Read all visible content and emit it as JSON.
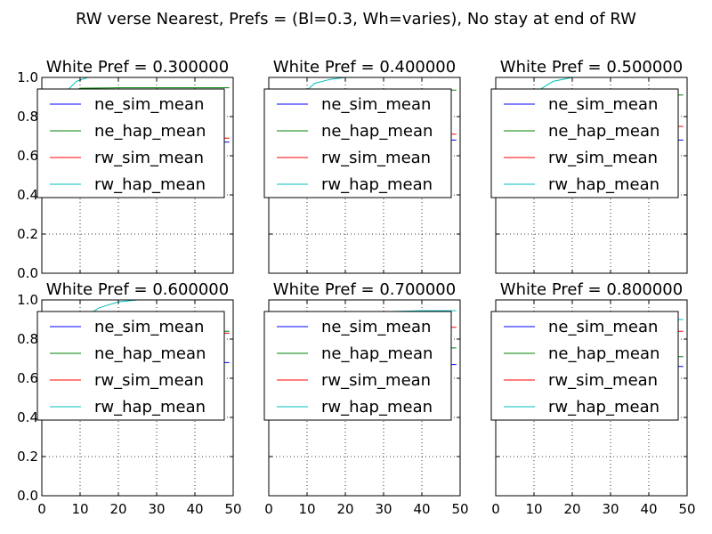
{
  "suptitle": "RW verse Nearest, Prefs = (Bl=0.3, Wh=varies), No stay at end of RW",
  "colors": {
    "ne_sim_mean": "#0000ff",
    "ne_hap_mean": "#008000",
    "rw_sim_mean": "#ff0000",
    "rw_hap_mean": "#00bfbf"
  },
  "chart_data": [
    {
      "type": "line",
      "title": "White Pref = 0.300000",
      "xlim": [
        0,
        50
      ],
      "ylim": [
        0,
        1.0
      ],
      "xticks": [
        "0",
        "10",
        "20",
        "30",
        "40",
        "50"
      ],
      "yticks": [
        "0.0",
        "0.2",
        "0.4",
        "0.6",
        "0.8",
        "1.0"
      ],
      "grid": true,
      "legend_position": "top-left",
      "legend": [
        "ne_sim_mean",
        "ne_hap_mean",
        "rw_sim_mean",
        "rw_hap_mean"
      ],
      "series": [
        {
          "name": "ne_sim_mean",
          "x": [
            0,
            49
          ],
          "y": [
            0.67,
            0.67
          ]
        },
        {
          "name": "ne_hap_mean",
          "x": [
            0,
            5,
            10,
            20,
            30,
            40,
            49
          ],
          "y": [
            0.5,
            0.9,
            0.945,
            0.947,
            0.947,
            0.947,
            0.947
          ]
        },
        {
          "name": "rw_sim_mean",
          "x": [
            0,
            49
          ],
          "y": [
            0.69,
            0.69
          ]
        },
        {
          "name": "rw_hap_mean",
          "x": [
            0,
            3,
            6,
            9,
            12,
            20,
            30,
            49
          ],
          "y": [
            0.5,
            0.8,
            0.92,
            0.98,
            1.0,
            1.0,
            1.0,
            1.0
          ]
        }
      ]
    },
    {
      "type": "line",
      "title": "White Pref = 0.400000",
      "xlim": [
        0,
        50
      ],
      "ylim": [
        0,
        1.0
      ],
      "xticks": [
        "0",
        "10",
        "20",
        "30",
        "40",
        "50"
      ],
      "yticks": [
        "0.0",
        "0.2",
        "0.4",
        "0.6",
        "0.8",
        "1.0"
      ],
      "grid": true,
      "legend_position": "top-left",
      "legend": [
        "ne_sim_mean",
        "ne_hap_mean",
        "rw_sim_mean",
        "rw_hap_mean"
      ],
      "series": [
        {
          "name": "ne_sim_mean",
          "x": [
            0,
            49
          ],
          "y": [
            0.68,
            0.68
          ]
        },
        {
          "name": "ne_hap_mean",
          "x": [
            0,
            5,
            10,
            20,
            30,
            40,
            49
          ],
          "y": [
            0.5,
            0.85,
            0.92,
            0.93,
            0.935,
            0.935,
            0.935
          ]
        },
        {
          "name": "rw_sim_mean",
          "x": [
            0,
            49
          ],
          "y": [
            0.71,
            0.71
          ]
        },
        {
          "name": "rw_hap_mean",
          "x": [
            0,
            4,
            8,
            12,
            16,
            20,
            30,
            49
          ],
          "y": [
            0.5,
            0.75,
            0.9,
            0.97,
            0.99,
            1.0,
            1.0,
            1.0
          ]
        }
      ]
    },
    {
      "type": "line",
      "title": "White Pref = 0.500000",
      "xlim": [
        0,
        50
      ],
      "ylim": [
        0,
        1.0
      ],
      "xticks": [
        "0",
        "10",
        "20",
        "30",
        "40",
        "50"
      ],
      "yticks": [
        "0.0",
        "0.2",
        "0.4",
        "0.6",
        "0.8",
        "1.0"
      ],
      "grid": true,
      "legend_position": "top-left",
      "legend": [
        "ne_sim_mean",
        "ne_hap_mean",
        "rw_sim_mean",
        "rw_hap_mean"
      ],
      "series": [
        {
          "name": "ne_sim_mean",
          "x": [
            0,
            49
          ],
          "y": [
            0.68,
            0.68
          ]
        },
        {
          "name": "ne_hap_mean",
          "x": [
            0,
            5,
            10,
            20,
            30,
            40,
            49
          ],
          "y": [
            0.5,
            0.82,
            0.89,
            0.905,
            0.91,
            0.91,
            0.91
          ]
        },
        {
          "name": "rw_sim_mean",
          "x": [
            0,
            49
          ],
          "y": [
            0.75,
            0.75
          ]
        },
        {
          "name": "rw_hap_mean",
          "x": [
            0,
            5,
            10,
            15,
            20,
            30,
            49
          ],
          "y": [
            0.5,
            0.78,
            0.92,
            0.98,
            1.0,
            1.0,
            1.0
          ]
        }
      ]
    },
    {
      "type": "line",
      "title": "White Pref = 0.600000",
      "xlim": [
        0,
        50
      ],
      "ylim": [
        0,
        1.0
      ],
      "xticks": [
        "0",
        "10",
        "20",
        "30",
        "40",
        "50"
      ],
      "yticks": [
        "0.0",
        "0.2",
        "0.4",
        "0.6",
        "0.8",
        "1.0"
      ],
      "grid": true,
      "legend_position": "top-left",
      "legend": [
        "ne_sim_mean",
        "ne_hap_mean",
        "rw_sim_mean",
        "rw_hap_mean"
      ],
      "series": [
        {
          "name": "ne_sim_mean",
          "x": [
            0,
            49
          ],
          "y": [
            0.68,
            0.68
          ]
        },
        {
          "name": "ne_hap_mean",
          "x": [
            0,
            5,
            10,
            20,
            30,
            40,
            49
          ],
          "y": [
            0.5,
            0.75,
            0.82,
            0.835,
            0.84,
            0.84,
            0.84
          ]
        },
        {
          "name": "rw_sim_mean",
          "x": [
            0,
            49
          ],
          "y": [
            0.83,
            0.83
          ]
        },
        {
          "name": "rw_hap_mean",
          "x": [
            0,
            5,
            10,
            15,
            20,
            25,
            30,
            49
          ],
          "y": [
            0.5,
            0.75,
            0.9,
            0.96,
            0.99,
            1.0,
            1.0,
            1.0
          ]
        }
      ]
    },
    {
      "type": "line",
      "title": "White Pref = 0.700000",
      "xlim": [
        0,
        50
      ],
      "ylim": [
        0,
        1.0
      ],
      "xticks": [
        "0",
        "10",
        "20",
        "30",
        "40",
        "50"
      ],
      "yticks": [
        "0.0",
        "0.2",
        "0.4",
        "0.6",
        "0.8",
        "1.0"
      ],
      "grid": true,
      "legend_position": "top-left",
      "legend": [
        "ne_sim_mean",
        "ne_hap_mean",
        "rw_sim_mean",
        "rw_hap_mean"
      ],
      "series": [
        {
          "name": "ne_sim_mean",
          "x": [
            0,
            49
          ],
          "y": [
            0.67,
            0.67
          ]
        },
        {
          "name": "ne_hap_mean",
          "x": [
            0,
            5,
            10,
            20,
            30,
            40,
            49
          ],
          "y": [
            0.5,
            0.7,
            0.74,
            0.75,
            0.755,
            0.755,
            0.755
          ]
        },
        {
          "name": "rw_sim_mean",
          "x": [
            0,
            49
          ],
          "y": [
            0.86,
            0.86
          ]
        },
        {
          "name": "rw_hap_mean",
          "x": [
            0,
            5,
            10,
            20,
            30,
            40,
            49
          ],
          "y": [
            0.5,
            0.72,
            0.85,
            0.92,
            0.94,
            0.945,
            0.945
          ]
        }
      ]
    },
    {
      "type": "line",
      "title": "White Pref = 0.800000",
      "xlim": [
        0,
        50
      ],
      "ylim": [
        0,
        1.0
      ],
      "xticks": [
        "0",
        "10",
        "20",
        "30",
        "40",
        "50"
      ],
      "yticks": [
        "0.0",
        "0.2",
        "0.4",
        "0.6",
        "0.8",
        "1.0"
      ],
      "grid": true,
      "legend_position": "top-left",
      "legend": [
        "ne_sim_mean",
        "ne_hap_mean",
        "rw_sim_mean",
        "rw_hap_mean"
      ],
      "series": [
        {
          "name": "ne_sim_mean",
          "x": [
            0,
            49
          ],
          "y": [
            0.66,
            0.66
          ]
        },
        {
          "name": "ne_hap_mean",
          "x": [
            0,
            5,
            10,
            20,
            30,
            40,
            49
          ],
          "y": [
            0.5,
            0.65,
            0.7,
            0.705,
            0.71,
            0.71,
            0.71
          ]
        },
        {
          "name": "rw_sim_mean",
          "x": [
            0,
            49
          ],
          "y": [
            0.84,
            0.84
          ]
        },
        {
          "name": "rw_hap_mean",
          "x": [
            0,
            5,
            10,
            20,
            30,
            40,
            49
          ],
          "y": [
            0.5,
            0.7,
            0.82,
            0.88,
            0.895,
            0.9,
            0.9
          ]
        }
      ]
    }
  ]
}
